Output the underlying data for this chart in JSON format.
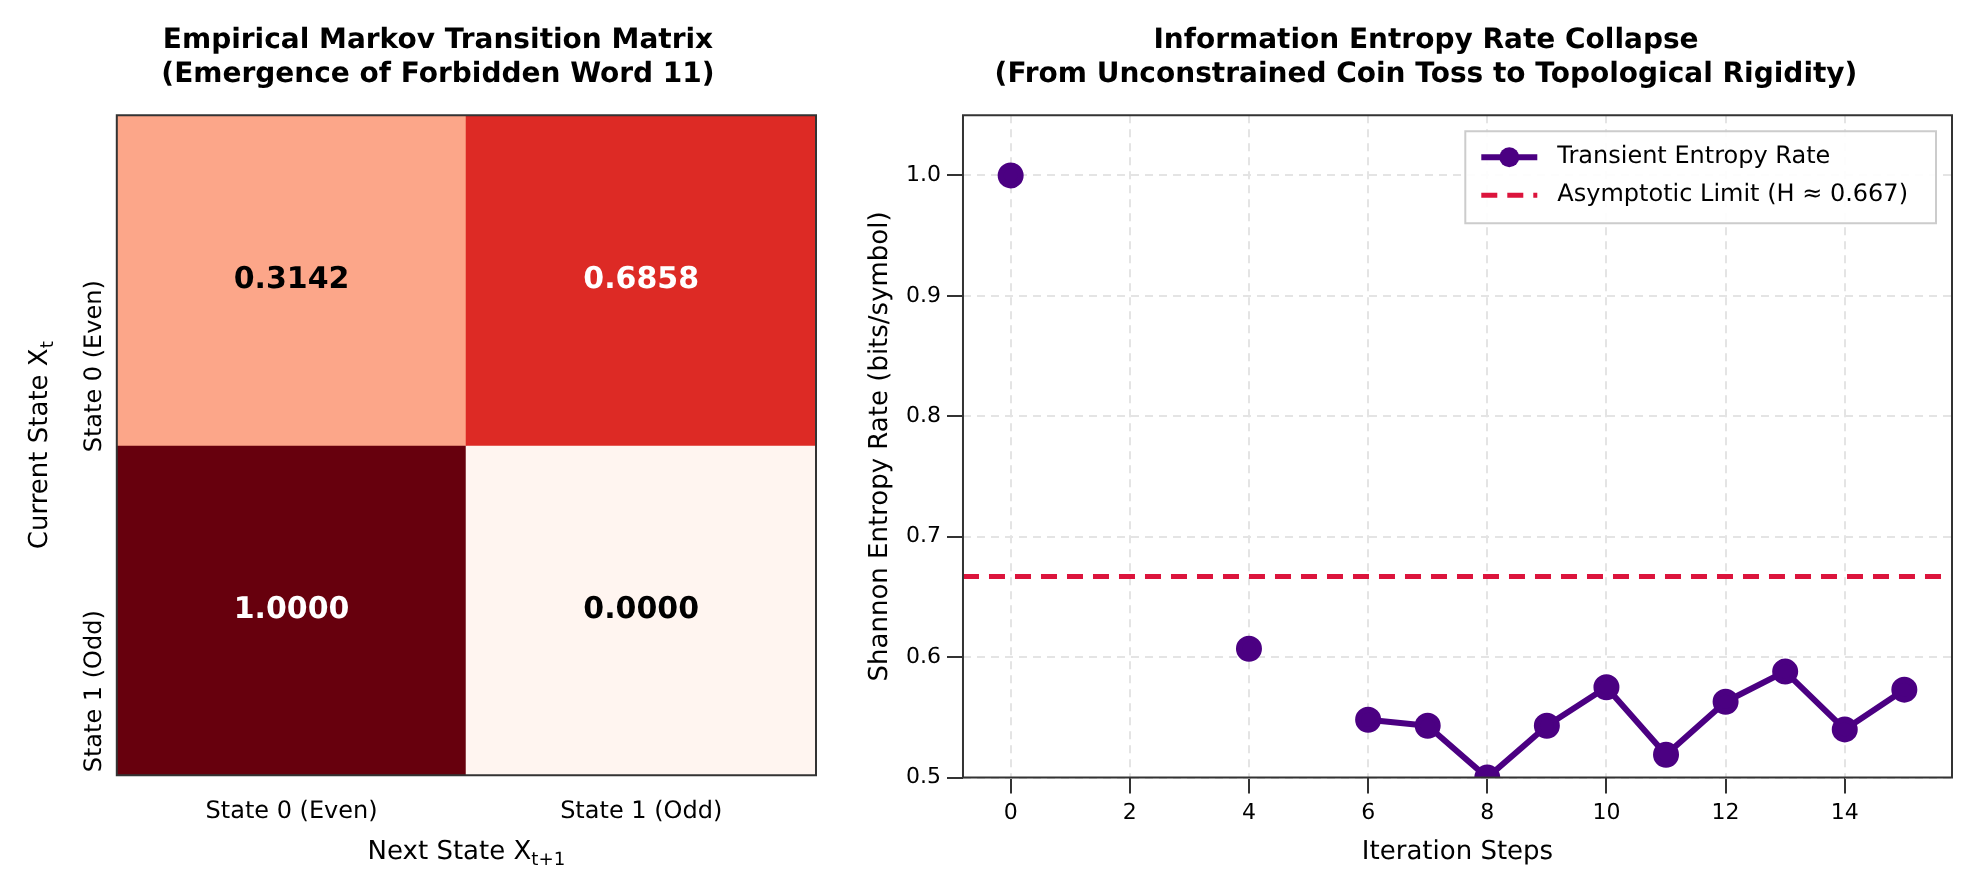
{
  "chart_data": [
    {
      "type": "heatmap",
      "title": "Empirical Markov Transition Matrix\n(Emergence of Forbidden Word 11)",
      "xlabel": "Next State X$_{t+1}$",
      "ylabel": "Current State X$_{t}$",
      "categories": [
        "State 0 (Even)",
        "State 1 (Odd)"
      ],
      "y_categories": [
        "State 0 (Even)",
        "State 1 (Odd)"
      ],
      "cells": [
        [
          0.3142,
          0.6858
        ],
        [
          1.0,
          0.0
        ]
      ],
      "cell_labels": [
        [
          "0.3142",
          "0.6858"
        ],
        [
          "1.0000",
          "0.0000"
        ]
      ]
    },
    {
      "type": "line",
      "title": "Information Entropy Rate Collapse\n(From Unconstrained Coin Toss to Topological Rigidity)",
      "xlabel": "Iteration Steps",
      "ylabel": "Shannon Entropy Rate (bits/symbol)",
      "x": [
        0,
        1,
        2,
        3,
        4,
        5,
        6,
        7,
        8,
        9,
        10,
        11,
        12,
        13,
        14,
        15
      ],
      "series": [
        {
          "name": "Transient Entropy Rate",
          "color": "#4b0082",
          "values": [
            1.0,
            null,
            null,
            null,
            0.607,
            null,
            0.548,
            0.543,
            0.5,
            0.543,
            0.575,
            0.519,
            0.563,
            0.588,
            0.54,
            0.573
          ]
        }
      ],
      "ref_lines": [
        {
          "axis": "y",
          "value": 0.667,
          "label": "Asymptotic Limit (H ≈ 0.667)",
          "color": "#dc143c",
          "line_style": "dashed"
        }
      ],
      "xlim": [
        -0.8,
        15.8
      ],
      "xticks": [
        0,
        2,
        4,
        6,
        8,
        10,
        12,
        14
      ],
      "ylim": [
        0.5,
        1.05
      ],
      "yticks": [
        0.5,
        0.6,
        0.7,
        0.8,
        0.9,
        {
          "value": 1,
          "label": "1.0"
        }
      ],
      "grid": true,
      "legend": "top right",
      "marker": "circle",
      "line_style": "solid"
    }
  ]
}
